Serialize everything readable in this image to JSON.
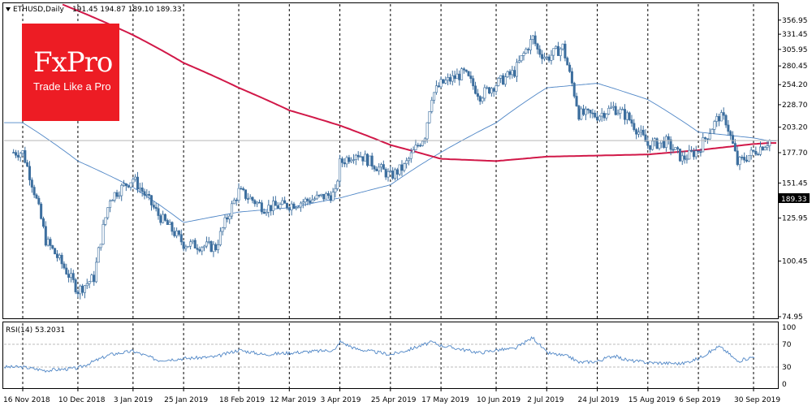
{
  "header": {
    "symbol": "ETHUSD,Daily",
    "ohlc": "191.45 194.87 189.10 189.33"
  },
  "logo": {
    "name": "FxPro",
    "tagline": "Trade Like a Pro",
    "color": "#ed1c24"
  },
  "price_tag": "189.33",
  "rsi_header": "RSI(14) 53.2031",
  "colors": {
    "bull_candle": "#3c6e9e",
    "bear_candle": "#3c6e9e",
    "ma_fast": "#4f86c6",
    "ma_slow": "#d11848",
    "rsi_line": "#4f86c6",
    "grid": "#000000",
    "price_line": "#b9b9b9"
  },
  "chart_data": [
    {
      "type": "candlestick",
      "title": "ETHUSD,Daily",
      "x": [
        "16 Nov 2018",
        "10 Dec 2018",
        "3 Jan 2019",
        "25 Jan 2019",
        "18 Feb 2019",
        "12 Mar 2019",
        "3 Apr 2019",
        "25 Apr 2019",
        "17 May 2019",
        "10 Jun 2019",
        "2 Jul 2019",
        "24 Jul 2019",
        "15 Aug 2019",
        "6 Sep 2019",
        "30 Sep 2019"
      ],
      "ylim": [
        74.95,
        369.0
      ],
      "y_ticks": [
        356.95,
        331.45,
        305.95,
        280.45,
        254.2,
        228.7,
        203.2,
        177.7,
        151.45,
        125.95,
        100.45,
        74.95
      ],
      "last_price": 189.33,
      "grid": "vertical dashed",
      "price_anchors": [
        {
          "date": "16 Nov 2018",
          "price": 178
        },
        {
          "date": "26 Nov 2018",
          "price": 112
        },
        {
          "date": "10 Dec 2018",
          "price": 86
        },
        {
          "date": "17 Dec 2018",
          "price": 92
        },
        {
          "date": "24 Dec 2018",
          "price": 140
        },
        {
          "date": "3 Jan 2019",
          "price": 155
        },
        {
          "date": "14 Jan 2019",
          "price": 128
        },
        {
          "date": "25 Jan 2019",
          "price": 110
        },
        {
          "date": "8 Feb 2019",
          "price": 108
        },
        {
          "date": "18 Feb 2019",
          "price": 145
        },
        {
          "date": "1 Mar 2019",
          "price": 133
        },
        {
          "date": "12 Mar 2019",
          "price": 135
        },
        {
          "date": "1 Apr 2019",
          "price": 143
        },
        {
          "date": "3 Apr 2019",
          "price": 168
        },
        {
          "date": "10 Apr 2019",
          "price": 178
        },
        {
          "date": "25 Apr 2019",
          "price": 157
        },
        {
          "date": "1 May 2019",
          "price": 165
        },
        {
          "date": "10 May 2019",
          "price": 195
        },
        {
          "date": "13 May 2019",
          "price": 240
        },
        {
          "date": "17 May 2019",
          "price": 255
        },
        {
          "date": "27 May 2019",
          "price": 270
        },
        {
          "date": "3 Jun 2019",
          "price": 240
        },
        {
          "date": "10 Jun 2019",
          "price": 255
        },
        {
          "date": "18 Jun 2019",
          "price": 272
        },
        {
          "date": "26 Jun 2019",
          "price": 325
        },
        {
          "date": "28 Jun 2019",
          "price": 305
        },
        {
          "date": "2 Jul 2019",
          "price": 292
        },
        {
          "date": "9 Jul 2019",
          "price": 310
        },
        {
          "date": "12 Jul 2019",
          "price": 268
        },
        {
          "date": "16 Jul 2019",
          "price": 218
        },
        {
          "date": "24 Jul 2019",
          "price": 216
        },
        {
          "date": "31 Jul 2019",
          "price": 225
        },
        {
          "date": "6 Aug 2019",
          "price": 215
        },
        {
          "date": "15 Aug 2019",
          "price": 185
        },
        {
          "date": "23 Aug 2019",
          "price": 188
        },
        {
          "date": "30 Aug 2019",
          "price": 172
        },
        {
          "date": "6 Sep 2019",
          "price": 180
        },
        {
          "date": "15 Sep 2019",
          "price": 215
        },
        {
          "date": "18 Sep 2019",
          "price": 210
        },
        {
          "date": "23 Sep 2019",
          "price": 168
        },
        {
          "date": "30 Sep 2019",
          "price": 178
        },
        {
          "date": "7 Oct 2019",
          "price": 189.33
        }
      ],
      "ma_fast": {
        "color": "#4f86c6",
        "points": [
          {
            "date": "16 Nov 2018",
            "price": 208
          },
          {
            "date": "10 Dec 2018",
            "price": 170
          },
          {
            "date": "3 Jan 2019",
            "price": 148
          },
          {
            "date": "25 Jan 2019",
            "price": 123
          },
          {
            "date": "18 Feb 2019",
            "price": 130
          },
          {
            "date": "12 Mar 2019",
            "price": 133
          },
          {
            "date": "3 Apr 2019",
            "price": 140
          },
          {
            "date": "25 Apr 2019",
            "price": 150
          },
          {
            "date": "17 May 2019",
            "price": 178
          },
          {
            "date": "10 Jun 2019",
            "price": 208
          },
          {
            "date": "2 Jul 2019",
            "price": 250
          },
          {
            "date": "24 Jul 2019",
            "price": 256
          },
          {
            "date": "15 Aug 2019",
            "price": 235
          },
          {
            "date": "6 Sep 2019",
            "price": 198
          },
          {
            "date": "30 Sep 2019",
            "price": 192
          },
          {
            "date": "7 Oct 2019",
            "price": 189
          }
        ]
      },
      "ma_slow": {
        "color": "#d11848",
        "points": [
          {
            "date": "16 Nov 2018",
            "price": 420
          },
          {
            "date": "3 Jan 2019",
            "price": 330
          },
          {
            "date": "25 Jan 2019",
            "price": 285
          },
          {
            "date": "18 Feb 2019",
            "price": 250
          },
          {
            "date": "12 Mar 2019",
            "price": 222
          },
          {
            "date": "3 Apr 2019",
            "price": 205
          },
          {
            "date": "25 Apr 2019",
            "price": 185
          },
          {
            "date": "17 May 2019",
            "price": 172
          },
          {
            "date": "10 Jun 2019",
            "price": 170
          },
          {
            "date": "2 Jul 2019",
            "price": 174
          },
          {
            "date": "24 Jul 2019",
            "price": 175
          },
          {
            "date": "15 Aug 2019",
            "price": 176
          },
          {
            "date": "6 Sep 2019",
            "price": 180
          },
          {
            "date": "30 Sep 2019",
            "price": 186
          },
          {
            "date": "7 Oct 2019",
            "price": 187
          }
        ]
      }
    },
    {
      "type": "line",
      "title": "RSI(14) 53.2031",
      "ylim": [
        0,
        100
      ],
      "y_ticks": [
        100,
        70,
        30,
        0
      ],
      "levels": [
        70,
        30
      ],
      "last_value": 53.2031,
      "anchors": [
        {
          "date": "16 Nov 2018",
          "value": 30
        },
        {
          "date": "26 Nov 2018",
          "value": 24
        },
        {
          "date": "10 Dec 2018",
          "value": 28
        },
        {
          "date": "24 Dec 2018",
          "value": 52
        },
        {
          "date": "3 Jan 2019",
          "value": 58
        },
        {
          "date": "14 Jan 2019",
          "value": 42
        },
        {
          "date": "25 Jan 2019",
          "value": 45
        },
        {
          "date": "8 Feb 2019",
          "value": 48
        },
        {
          "date": "18 Feb 2019",
          "value": 60
        },
        {
          "date": "1 Mar 2019",
          "value": 52
        },
        {
          "date": "12 Mar 2019",
          "value": 55
        },
        {
          "date": "1 Apr 2019",
          "value": 60
        },
        {
          "date": "3 Apr 2019",
          "value": 75
        },
        {
          "date": "10 Apr 2019",
          "value": 62
        },
        {
          "date": "25 Apr 2019",
          "value": 52
        },
        {
          "date": "1 May 2019",
          "value": 58
        },
        {
          "date": "13 May 2019",
          "value": 74
        },
        {
          "date": "17 May 2019",
          "value": 68
        },
        {
          "date": "3 Jun 2019",
          "value": 55
        },
        {
          "date": "10 Jun 2019",
          "value": 60
        },
        {
          "date": "18 Jun 2019",
          "value": 62
        },
        {
          "date": "26 Jun 2019",
          "value": 82
        },
        {
          "date": "2 Jul 2019",
          "value": 55
        },
        {
          "date": "12 Jul 2019",
          "value": 48
        },
        {
          "date": "16 Jul 2019",
          "value": 38
        },
        {
          "date": "24 Jul 2019",
          "value": 40
        },
        {
          "date": "31 Jul 2019",
          "value": 50
        },
        {
          "date": "6 Aug 2019",
          "value": 42
        },
        {
          "date": "15 Aug 2019",
          "value": 38
        },
        {
          "date": "30 Aug 2019",
          "value": 36
        },
        {
          "date": "6 Sep 2019",
          "value": 45
        },
        {
          "date": "15 Sep 2019",
          "value": 66
        },
        {
          "date": "18 Sep 2019",
          "value": 58
        },
        {
          "date": "23 Sep 2019",
          "value": 40
        },
        {
          "date": "30 Sep 2019",
          "value": 48
        },
        {
          "date": "7 Oct 2019",
          "value": 53.2
        }
      ]
    }
  ]
}
